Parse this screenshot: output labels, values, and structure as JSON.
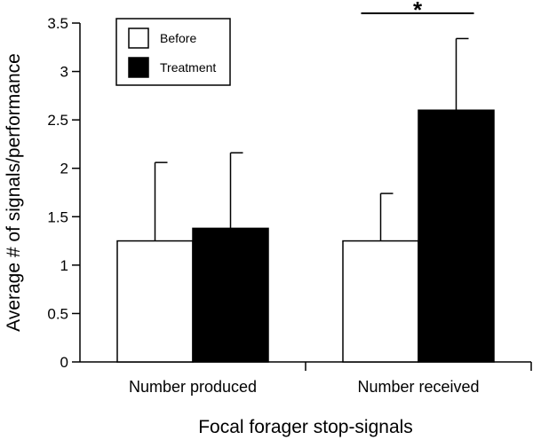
{
  "chart_data": {
    "type": "bar",
    "title": "",
    "xlabel": "Focal forager stop-signals",
    "ylabel": "Average # of signals/performance",
    "ylim": [
      0,
      3.5
    ],
    "yticks": [
      "0",
      "0.5",
      "1",
      "1.5",
      "2",
      "2.5",
      "3",
      "3.5"
    ],
    "categories": [
      "Number produced",
      "Number received"
    ],
    "series": [
      {
        "name": "Before",
        "color": "#ffffff",
        "values": [
          1.25,
          1.25
        ],
        "error_upper": [
          2.06,
          1.74
        ]
      },
      {
        "name": "Treatment",
        "color": "#000000",
        "values": [
          1.38,
          2.6
        ],
        "error_upper": [
          2.16,
          3.34
        ]
      }
    ],
    "annotations": [
      {
        "text": "*",
        "between": [
          "Number received"
        ]
      }
    ],
    "legend": "top-left",
    "grid": false
  }
}
